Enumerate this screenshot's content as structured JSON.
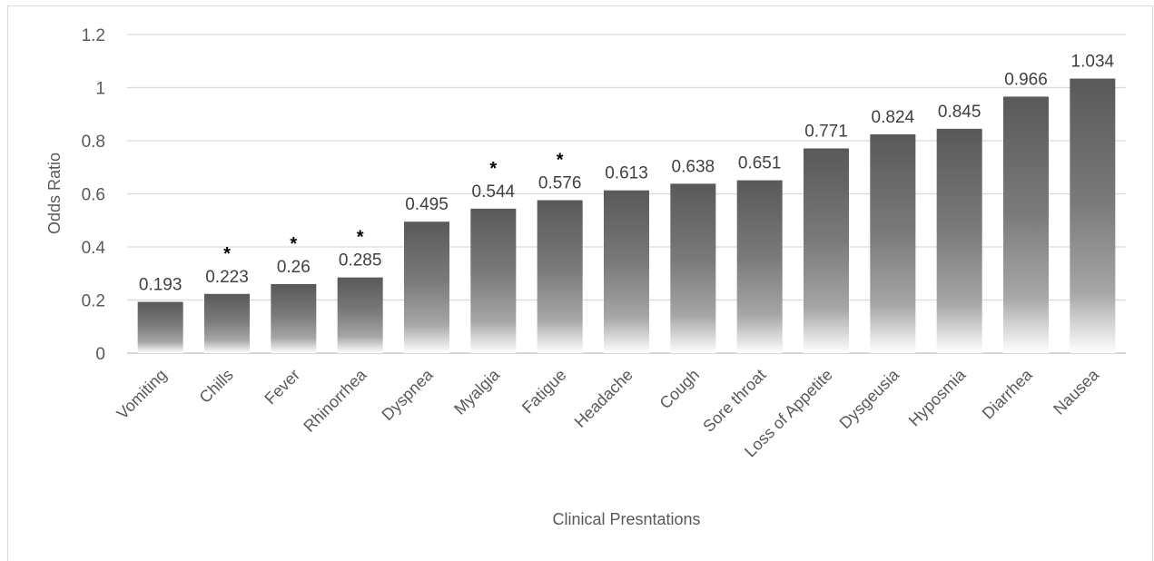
{
  "chart_data": {
    "type": "bar",
    "title": "",
    "xlabel": "Clinical Presntations",
    "ylabel": "Odds Ratio",
    "ylim": [
      0,
      1.2
    ],
    "yticks": [
      "0",
      "0.2",
      "0.4",
      "0.6",
      "0.8",
      "1",
      "1.2"
    ],
    "grid": true,
    "legend": "none",
    "categories": [
      "Vomiting",
      "Chills",
      "Fever",
      "Rhinorrhea",
      "Dyspnea",
      "Myalgia",
      "Fatigue",
      "Headache",
      "Cough",
      "Sore throat",
      "Loss of Appetite",
      "Dysgeusia",
      "Hyposmia",
      "Diarrhea",
      "Nausea"
    ],
    "values": [
      0.193,
      0.223,
      0.26,
      0.285,
      0.495,
      0.544,
      0.576,
      0.613,
      0.638,
      0.651,
      0.771,
      0.824,
      0.845,
      0.966,
      1.034
    ],
    "data_labels": [
      "0.193",
      "0.223",
      "0.26",
      "0.285",
      "0.495",
      "0.544",
      "0.576",
      "0.613",
      "0.638",
      "0.651",
      "0.771",
      "0.824",
      "0.845",
      "0.966",
      "1.034"
    ],
    "significance_marks": [
      "",
      "*",
      "*",
      "*",
      "",
      "*",
      "*",
      "",
      "",
      "",
      "",
      "",
      "",
      "",
      ""
    ],
    "colors": {
      "bar_top": "#595959",
      "bar_bottom": "#ffffff",
      "grid": "#d9d9d9",
      "axis": "#bfbfbf",
      "text": "#595959"
    }
  }
}
